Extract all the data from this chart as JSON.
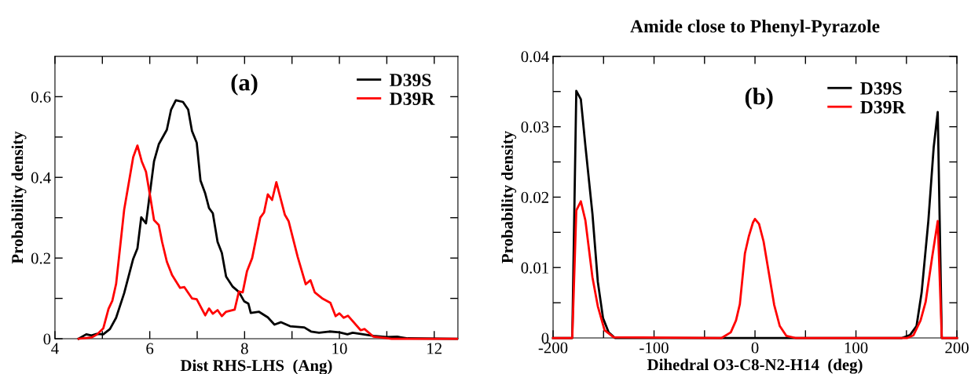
{
  "chart_data": [
    {
      "type": "line",
      "xlabel": "Dist RHS-LHS  (Ang)",
      "ylabel": "Probability density",
      "annotations": [
        "(a)"
      ],
      "legend": "top right",
      "grid": false,
      "xlim": [
        4,
        12.5
      ],
      "xticks": [
        4,
        {
          "value": 5,
          "label": null
        },
        6,
        {
          "value": 7,
          "label": null
        },
        8,
        {
          "value": 9,
          "label": null
        },
        10,
        {
          "value": 11,
          "label": null
        },
        12
      ],
      "ylim": [
        0,
        0.7
      ],
      "yticks": [
        0,
        {
          "value": 0.1,
          "label": null
        },
        0.2,
        {
          "value": 0.3,
          "label": null
        },
        0.4,
        {
          "value": 0.5,
          "label": null
        },
        0.6
      ],
      "series": [
        {
          "name": "D39S",
          "color": "#000000",
          "x": [
            4.5,
            4.66,
            4.77,
            4.88,
            5.02,
            5.16,
            5.29,
            5.46,
            5.65,
            5.74,
            5.82,
            5.92,
            6.09,
            6.19,
            6.36,
            6.45,
            6.55,
            6.7,
            6.81,
            6.89,
            6.99,
            7.07,
            7.17,
            7.25,
            7.33,
            7.43,
            7.52,
            7.61,
            7.75,
            7.88,
            7.99,
            8.08,
            8.13,
            8.3,
            8.49,
            8.63,
            8.77,
            8.96,
            9.26,
            9.4,
            9.57,
            9.79,
            10.0,
            10.17,
            10.28,
            10.72,
            11.0,
            11.22,
            11.44,
            12.48
          ],
          "values": [
            0,
            0.011,
            0.008,
            0.012,
            0.011,
            0.024,
            0.052,
            0.113,
            0.198,
            0.224,
            0.301,
            0.286,
            0.44,
            0.482,
            0.518,
            0.568,
            0.591,
            0.587,
            0.568,
            0.515,
            0.486,
            0.392,
            0.36,
            0.324,
            0.311,
            0.24,
            0.213,
            0.154,
            0.129,
            0.116,
            0.093,
            0.087,
            0.064,
            0.067,
            0.053,
            0.035,
            0.041,
            0.031,
            0.028,
            0.018,
            0.015,
            0.018,
            0.016,
            0.011,
            0.015,
            0.007,
            0.004,
            0.005,
            0.001,
            0
          ]
        },
        {
          "name": "D39R",
          "color": "#ff0000",
          "x": [
            4.5,
            4.77,
            4.88,
            5.02,
            5.13,
            5.21,
            5.29,
            5.46,
            5.57,
            5.65,
            5.74,
            5.83,
            5.92,
            6.01,
            6.09,
            6.19,
            6.26,
            6.36,
            6.47,
            6.64,
            6.73,
            6.89,
            6.99,
            7.17,
            7.25,
            7.33,
            7.43,
            7.52,
            7.61,
            7.79,
            7.88,
            7.96,
            8.05,
            8.16,
            8.33,
            8.41,
            8.49,
            8.58,
            8.67,
            8.85,
            8.93,
            9.12,
            9.29,
            9.39,
            9.48,
            9.65,
            9.81,
            9.92,
            10.0,
            10.09,
            10.18,
            10.45,
            10.53,
            10.72,
            10.94,
            11.1,
            12.48
          ],
          "values": [
            0,
            0.003,
            0.01,
            0.026,
            0.074,
            0.094,
            0.136,
            0.32,
            0.395,
            0.45,
            0.479,
            0.44,
            0.414,
            0.352,
            0.294,
            0.282,
            0.24,
            0.191,
            0.158,
            0.126,
            0.128,
            0.1,
            0.098,
            0.058,
            0.075,
            0.062,
            0.071,
            0.056,
            0.067,
            0.072,
            0.117,
            0.115,
            0.167,
            0.2,
            0.3,
            0.313,
            0.358,
            0.344,
            0.388,
            0.307,
            0.291,
            0.203,
            0.135,
            0.145,
            0.115,
            0.099,
            0.089,
            0.056,
            0.063,
            0.052,
            0.057,
            0.021,
            0.024,
            0.005,
            0.002,
            0,
            0
          ]
        }
      ]
    },
    {
      "type": "line",
      "title": "Amide close to Phenyl-Pyrazole",
      "xlabel": "Dihedral O3-C8-N2-H14  (deg)",
      "ylabel": "Probability density",
      "annotations": [
        "(b)"
      ],
      "legend": "top right",
      "grid": false,
      "xlim": [
        -200,
        200
      ],
      "xticks": [
        -200,
        {
          "value": -150,
          "label": null
        },
        -100,
        {
          "value": -50,
          "label": null
        },
        0,
        {
          "value": 50,
          "label": null
        },
        100,
        {
          "value": 150,
          "label": null
        },
        200
      ],
      "ylim": [
        0,
        0.04
      ],
      "yticks": [
        0,
        {
          "value": 0.005,
          "label": null
        },
        0.01,
        {
          "value": 0.015,
          "label": null
        },
        0.02,
        {
          "value": 0.025,
          "label": null
        },
        0.03,
        {
          "value": 0.035,
          "label": null
        },
        0.04
      ],
      "series": [
        {
          "name": "D39S",
          "color": "#000000",
          "x": [
            -200,
            -181,
            -177,
            -172.5,
            -168,
            -161,
            -155.7,
            -150.5,
            -145,
            -138.7,
            145.6,
            153.5,
            160,
            165,
            171.7,
            177,
            181,
            185,
            200
          ],
          "values": [
            0,
            0,
            0.0351,
            0.0339,
            0.0273,
            0.0176,
            0.008,
            0.0028,
            0.0008,
            0,
            0,
            0.0004,
            0.0017,
            0.0064,
            0.0166,
            0.0271,
            0.0321,
            0,
            0
          ]
        },
        {
          "name": "D39R",
          "color": "#ff0000",
          "x": [
            -200,
            -181,
            -177,
            -172.5,
            -168,
            -161,
            -155.7,
            -149,
            -140,
            -33,
            -24,
            -18.8,
            -15,
            -10,
            -6,
            -2,
            0,
            4,
            8.5,
            14,
            19,
            24.5,
            31,
            40,
            151,
            157,
            164,
            169,
            175.5,
            181,
            185,
            200
          ],
          "values": [
            0,
            0,
            0.0181,
            0.0194,
            0.0167,
            0.0086,
            0.0045,
            0.0011,
            0.0001,
            0,
            0.0008,
            0.0025,
            0.0048,
            0.012,
            0.0145,
            0.0164,
            0.0169,
            0.0162,
            0.0137,
            0.009,
            0.0047,
            0.0017,
            0.0003,
            0,
            0,
            0.0004,
            0.0025,
            0.0051,
            0.0115,
            0.0166,
            0,
            0
          ]
        }
      ]
    }
  ]
}
